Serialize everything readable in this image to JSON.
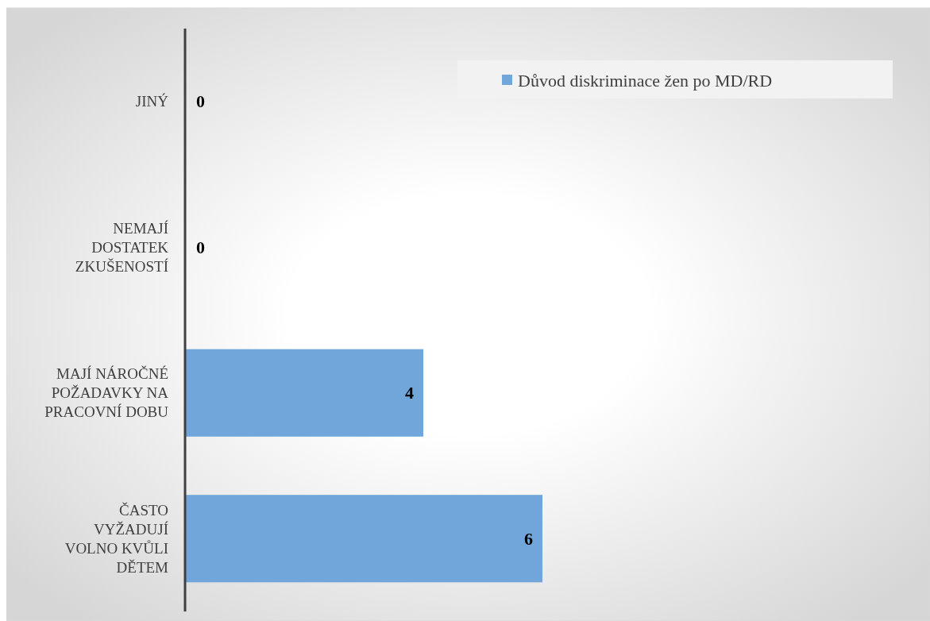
{
  "chart_data": {
    "type": "bar",
    "orientation": "horizontal",
    "categories": [
      "JINÝ",
      "NEMAJÍ DOSTATEK ZKUŠENOSTÍ",
      "MAJÍ NÁROČNÉ POŽADAVKY NA PRACOVNÍ DOBU",
      "ČASTO VYŽADUJÍ VOLNO KVŮLI DĚTEM"
    ],
    "series": [
      {
        "name": "Důvod diskriminace žen po MD/RD",
        "color": "#70a6d9",
        "values": [
          0,
          0,
          4,
          6
        ]
      }
    ],
    "data_labels": true,
    "legend": "top right"
  }
}
